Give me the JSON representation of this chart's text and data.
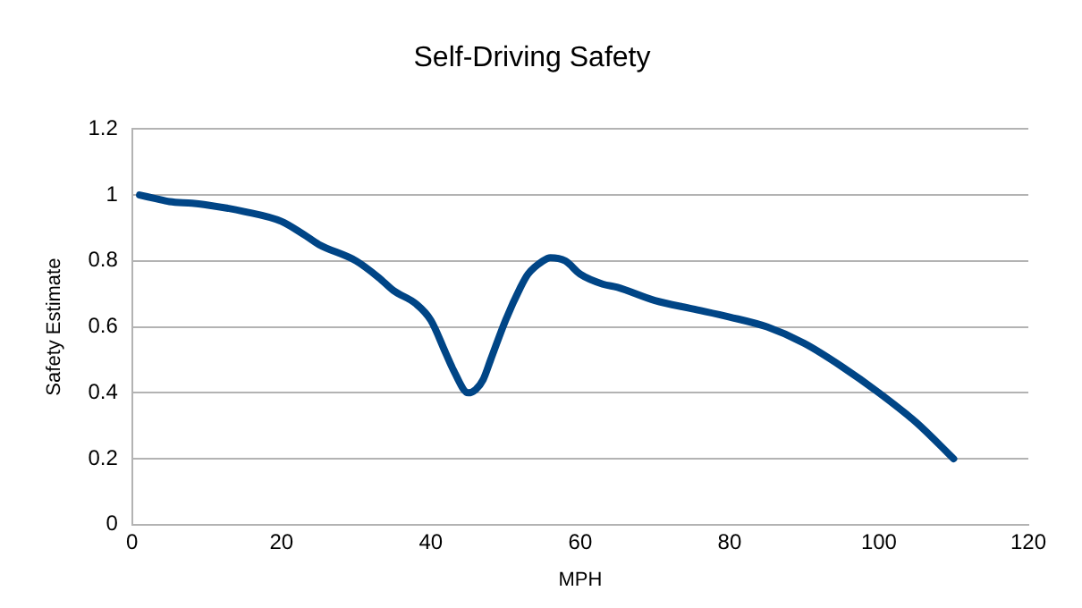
{
  "chart_data": {
    "type": "line",
    "title": "Self-Driving Safety",
    "xlabel": "MPH",
    "ylabel": "Safety Estimate",
    "x": [
      1,
      3,
      5,
      8,
      10,
      15,
      20,
      23,
      25,
      30,
      33,
      35,
      38,
      40,
      42,
      43,
      45,
      46,
      47,
      48,
      50,
      52,
      53,
      55,
      56,
      58,
      60,
      63,
      65,
      70,
      75,
      80,
      85,
      90,
      95,
      100,
      105,
      110
    ],
    "series": [
      {
        "color": "#004586",
        "values": [
          1.0,
          0.99,
          0.98,
          0.975,
          0.97,
          0.95,
          0.92,
          0.88,
          0.85,
          0.8,
          0.75,
          0.71,
          0.67,
          0.62,
          0.52,
          0.47,
          0.4,
          0.41,
          0.44,
          0.5,
          0.62,
          0.72,
          0.76,
          0.8,
          0.81,
          0.8,
          0.76,
          0.73,
          0.72,
          0.68,
          0.655,
          0.63,
          0.6,
          0.55,
          0.48,
          0.4,
          0.31,
          0.2
        ]
      }
    ],
    "xlim": [
      0,
      120
    ],
    "xticks": [
      0,
      20,
      40,
      60,
      80,
      100,
      120
    ],
    "ylim": [
      0,
      1.2
    ],
    "yticks": [
      0,
      0.2,
      0.4,
      0.6,
      0.8,
      1,
      1.2
    ],
    "grid": "y",
    "legend": false,
    "marker": "none",
    "line_style": "solid"
  }
}
